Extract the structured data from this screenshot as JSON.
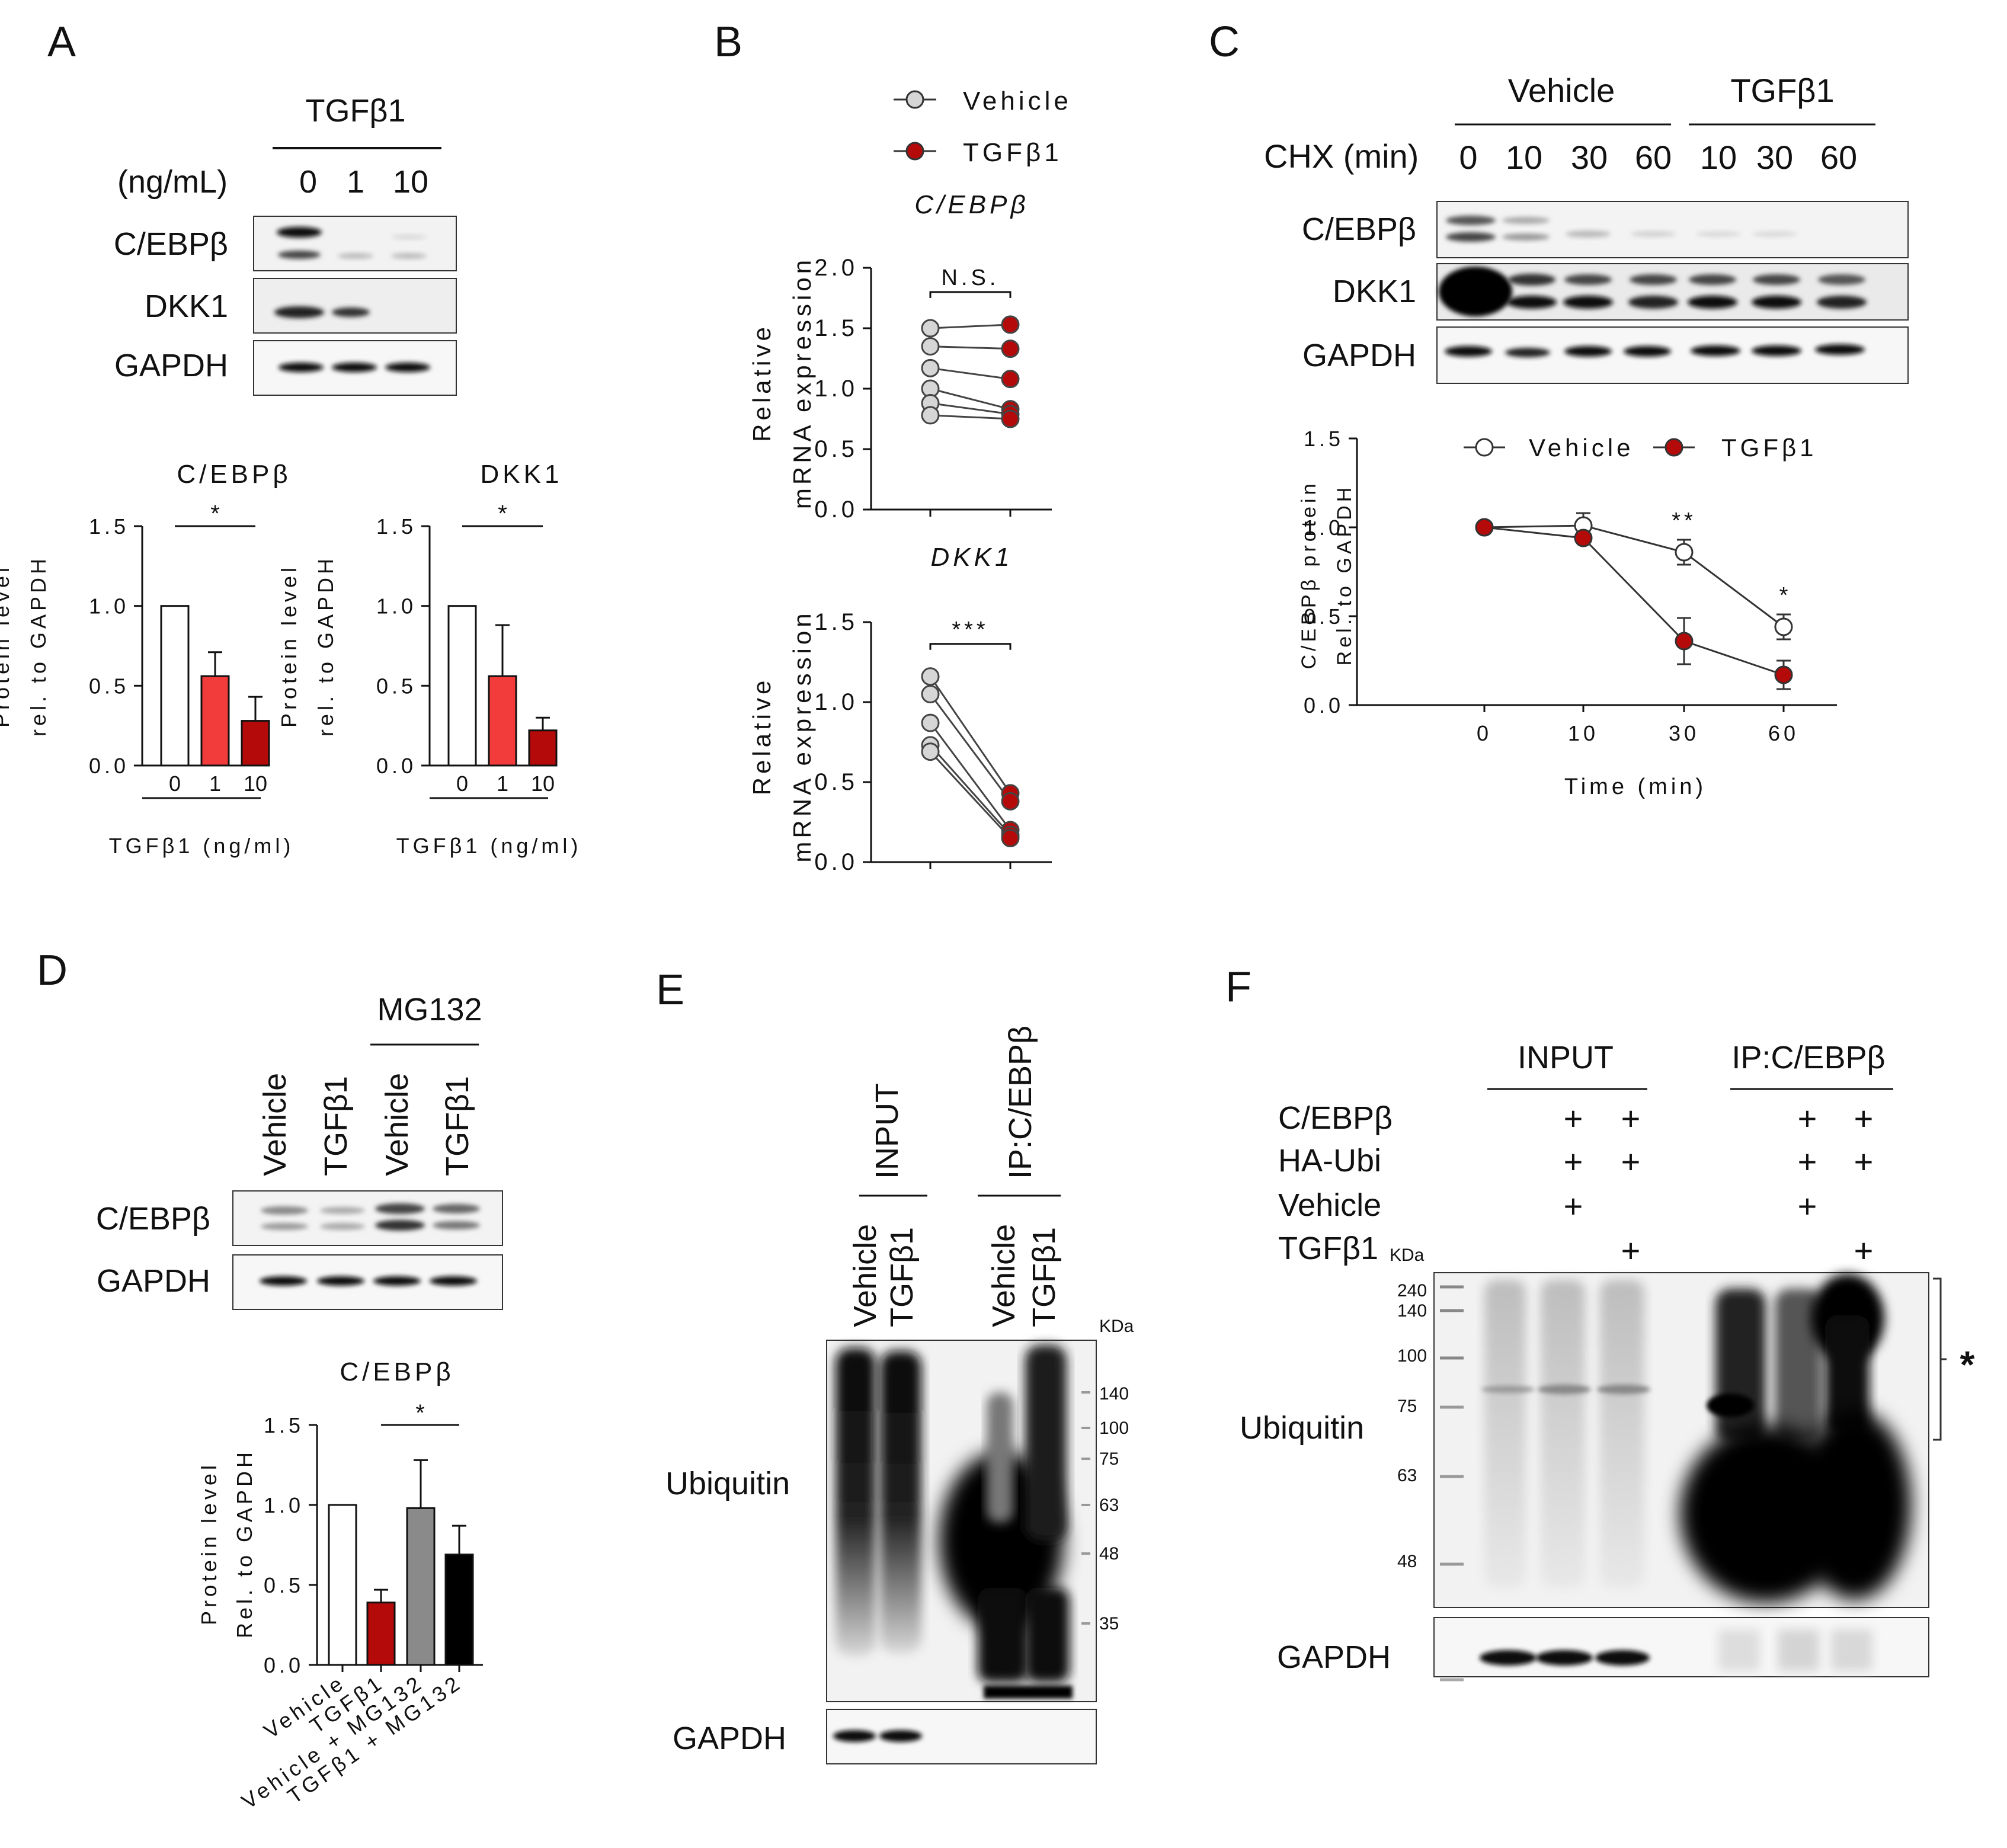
{
  "panels": {
    "A": {
      "letter": "A",
      "treatment": "TGFβ1",
      "conc_label": "(ng/mL)",
      "lanes": [
        "0",
        "1",
        "10"
      ],
      "blot_labels": [
        "C/EBPβ",
        "DKK1",
        "GAPDH"
      ],
      "charts": [
        {
          "title": "C/EBPβ",
          "sig": "*",
          "xlabel": "TGFβ1 (ng/ml)",
          "ylabel": [
            "Protein level",
            "rel. to GAPDH"
          ]
        },
        {
          "title": "DKK1",
          "sig": "*",
          "xlabel": "TGFβ1 (ng/ml)",
          "ylabel": [
            "Protein level",
            "rel. to GAPDH"
          ]
        }
      ]
    },
    "B": {
      "letter": "B",
      "legend": [
        "Vehicle",
        "TGFβ1"
      ],
      "charts": [
        {
          "title": "C/EBPβ",
          "sig": "N.S.",
          "ylabel": [
            "Relative",
            "mRNA expression"
          ]
        },
        {
          "title": "DKK1",
          "sig": "***",
          "ylabel": [
            "Relative",
            "mRNA expression"
          ]
        }
      ]
    },
    "C": {
      "letter": "C",
      "groups": [
        "Vehicle",
        "TGFβ1"
      ],
      "chx_label": "CHX (min)",
      "lanes": [
        "0",
        "10",
        "30",
        "60",
        "10",
        "30",
        "60"
      ],
      "blot_labels": [
        "C/EBPβ",
        "DKK1",
        "GAPDH"
      ],
      "legend": [
        "Vehicle",
        "TGFβ1"
      ],
      "xlabel": "Time (min)",
      "ylabel": [
        "C/EBPβ protein",
        "Rel. to GAPDH"
      ],
      "sig": [
        "**",
        "*"
      ]
    },
    "D": {
      "letter": "D",
      "mg_label": "MG132",
      "lanes": [
        "Vehicle",
        "TGFβ1",
        "Vehicle",
        "TGFβ1"
      ],
      "blot_labels": [
        "C/EBPβ",
        "GAPDH"
      ],
      "chart_title": "C/EBPβ",
      "sig": "*",
      "ylabel": [
        "Protein level",
        "Rel. to GAPDH"
      ]
    },
    "E": {
      "letter": "E",
      "groups": [
        "INPUT",
        "IP:C/EBPβ"
      ],
      "lanes": [
        "Vehicle",
        "TGFβ1",
        "Vehicle",
        "TGFβ1"
      ],
      "blot_labels": [
        "Ubiquitin",
        "GAPDH"
      ],
      "kda_label": "KDa",
      "markers": [
        "140",
        "100",
        "75",
        "63",
        "48",
        "35"
      ]
    },
    "F": {
      "letter": "F",
      "groups": [
        "INPUT",
        "IP:C/EBPβ"
      ],
      "rows": [
        "C/EBPβ",
        "HA-Ubi",
        "Vehicle",
        "TGFβ1"
      ],
      "plus": "+",
      "kda_label": "KDa",
      "markers": [
        "240",
        "140",
        "100",
        "75",
        "63",
        "48"
      ],
      "blot_labels": [
        "Ubiquitin",
        "GAPDH"
      ],
      "bracket_mark": "*"
    }
  },
  "chart_data": [
    {
      "type": "bar",
      "panel": "A",
      "title": "C/EBPβ",
      "categories": [
        "0",
        "1",
        "10"
      ],
      "values": [
        1.0,
        0.56,
        0.28
      ],
      "errors": [
        0,
        0.15,
        0.15
      ],
      "colors": [
        "#ffffff",
        "#f23b3b",
        "#b50a0a"
      ],
      "ylim": [
        0,
        1.5
      ],
      "yticks": [
        "0.0",
        "0.5",
        "1.0",
        "1.5"
      ],
      "xlabel": "TGFβ1 (ng/ml)",
      "ylabel": "Protein level rel. to GAPDH"
    },
    {
      "type": "bar",
      "panel": "A",
      "title": "DKK1",
      "categories": [
        "0",
        "1",
        "10"
      ],
      "values": [
        1.0,
        0.56,
        0.22
      ],
      "errors": [
        0,
        0.32,
        0.08
      ],
      "colors": [
        "#ffffff",
        "#f23b3b",
        "#b50a0a"
      ],
      "ylim": [
        0,
        1.5
      ],
      "yticks": [
        "0.0",
        "0.5",
        "1.0",
        "1.5"
      ],
      "xlabel": "TGFβ1 (ng/ml)",
      "ylabel": "Protein level rel. to GAPDH"
    },
    {
      "type": "scatter",
      "panel": "B",
      "title": "C/EBPβ",
      "pairs": [
        [
          1.5,
          1.53
        ],
        [
          1.35,
          1.33
        ],
        [
          1.17,
          1.08
        ],
        [
          1.0,
          0.83
        ],
        [
          0.88,
          0.79
        ],
        [
          0.78,
          0.75
        ]
      ],
      "ylim": [
        0,
        2.0
      ],
      "yticks": [
        "0.0",
        "0.5",
        "1.0",
        "1.5",
        "2.0"
      ],
      "ylabel": "Relative mRNA expression"
    },
    {
      "type": "scatter",
      "panel": "B",
      "title": "DKK1",
      "pairs": [
        [
          1.16,
          0.43
        ],
        [
          1.05,
          0.38
        ],
        [
          0.87,
          0.2
        ],
        [
          0.73,
          0.17
        ],
        [
          0.69,
          0.15
        ]
      ],
      "ylim": [
        0,
        1.5
      ],
      "yticks": [
        "0.0",
        "0.5",
        "1.0",
        "1.5"
      ],
      "ylabel": "Relative mRNA expression"
    },
    {
      "type": "line",
      "panel": "C",
      "x": [
        0,
        10,
        30,
        60
      ],
      "xticks": [
        "0",
        "10",
        "30",
        "60"
      ],
      "series": [
        {
          "name": "Vehicle",
          "values": [
            1.0,
            1.01,
            0.86,
            0.44
          ],
          "errors": [
            0,
            0.07,
            0.07,
            0.07
          ]
        },
        {
          "name": "TGFβ1",
          "values": [
            1.0,
            0.94,
            0.36,
            0.17
          ],
          "errors": [
            0,
            0,
            0.13,
            0.08
          ]
        }
      ],
      "ylim": [
        0,
        1.5
      ],
      "yticks": [
        "0.0",
        "0.5",
        "1.0",
        "1.5"
      ],
      "xlabel": "Time (min)",
      "ylabel": "C/EBPβ protein Rel. to GAPDH"
    },
    {
      "type": "bar",
      "panel": "D",
      "title": "C/EBPβ",
      "categories": [
        "Vehicle",
        "TGFβ1",
        "Vehicle + MG132",
        "TGFβ1 + MG132"
      ],
      "values": [
        1.0,
        0.39,
        0.98,
        0.69
      ],
      "errors": [
        0,
        0.08,
        0.3,
        0.18
      ],
      "colors": [
        "#ffffff",
        "#b50a0a",
        "#8a8a8a",
        "#000000"
      ],
      "ylim": [
        0,
        1.5
      ],
      "yticks": [
        "0.0",
        "0.5",
        "1.0",
        "1.5"
      ],
      "ylabel": "Protein level Rel. to GAPDH"
    }
  ]
}
